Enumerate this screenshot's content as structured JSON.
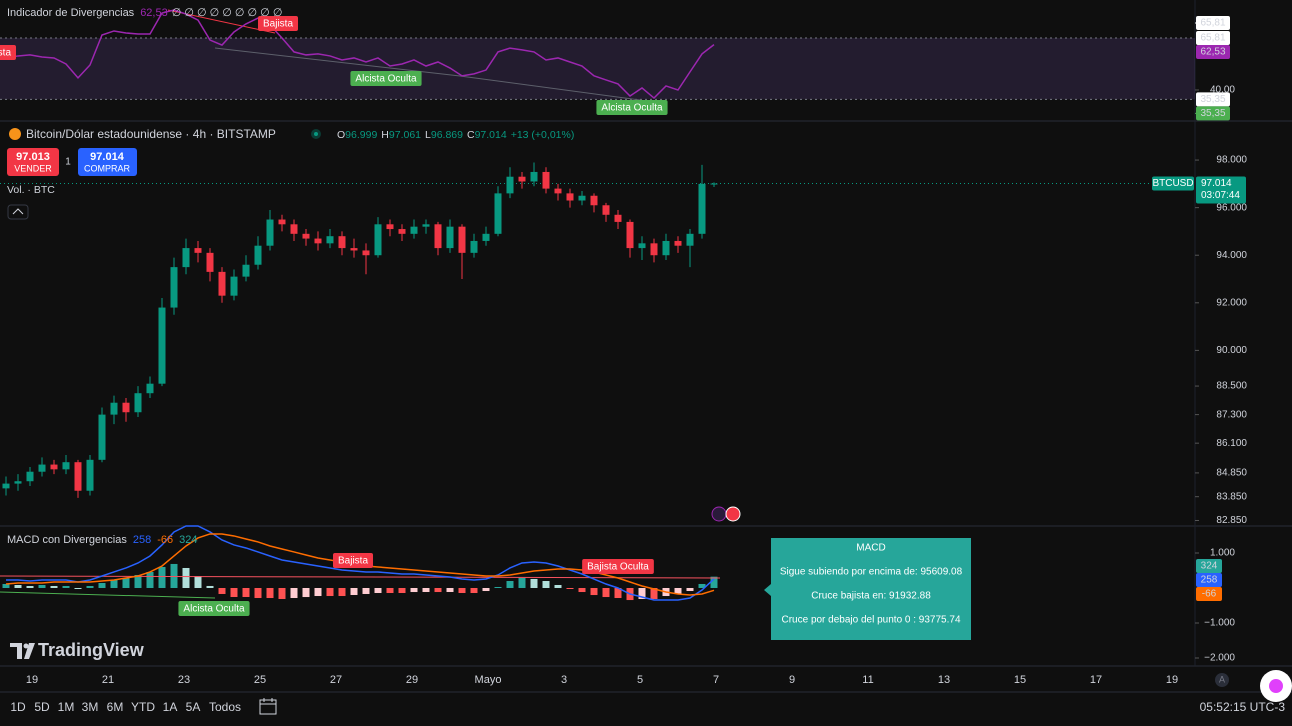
{
  "chart_data": [
    {
      "type": "line",
      "title": "Indicador de Divergencias",
      "legend_extra": "∅ ∅ ∅ ∅ ∅ ∅ ∅ ∅ ∅",
      "last_value_label": "62,53",
      "color": "#9c27b0",
      "values": [
        55.9,
        56.9,
        57.4,
        56.4,
        55.9,
        52.9,
        46.0,
        52.4,
        67.3,
        69.3,
        68.3,
        67.8,
        67.8,
        78.2,
        79.7,
        77.7,
        74.7,
        64.8,
        62.3,
        68.8,
        72.8,
        75.7,
        72.3,
        65.8,
        58.9,
        57.4,
        57.9,
        56.9,
        54.9,
        55.9,
        53.9,
        55.9,
        51.9,
        52.9,
        54.9,
        51.9,
        53.9,
        50.9,
        47.0,
        48.0,
        49.9,
        58.9,
        60.8,
        59.9,
        58.9,
        54.9,
        55.9,
        53.9,
        51.9,
        47.0,
        45.0,
        43.0,
        37.0,
        41.0,
        36.0,
        42.0,
        40.0,
        49.0,
        57.9,
        62.53
      ],
      "ylim": [
        25.1,
        84.67
      ],
      "yticks": [
        {
          "value": 40,
          "label": "40,00"
        }
      ],
      "levels": [
        {
          "value": 65.81,
          "label": "65,81"
        },
        {
          "value": 35.35,
          "label": "35,35"
        }
      ],
      "level_tags": [
        {
          "value": 65.81,
          "label": "65,81",
          "color": "#ffffff"
        },
        {
          "value": 35.35,
          "label": "35,35",
          "color": "#4caf50"
        }
      ],
      "annotations": [
        {
          "text": "Bajista",
          "color": "#f23645"
        },
        {
          "text": "Bajista",
          "color": "#f23645"
        },
        {
          "text": "Alcista Oculta",
          "color": "#4caf50"
        },
        {
          "text": "Alcista Oculta",
          "color": "#4caf50"
        }
      ]
    },
    {
      "type": "candlestick",
      "title": "Bitcoin/Dólar estadounidense · 4h · BITSTAMP",
      "volume_label": "Vol. · BTC",
      "up_color": "#089981",
      "down_color": "#f23645",
      "ohlc_keys": [
        "O",
        "H",
        "L",
        "C"
      ],
      "last_ohlc_labels": [
        "96.999",
        "97.061",
        "96.869",
        "97.014"
      ],
      "change_label": "+13 (+0,01%)",
      "last_price_label": "97.014",
      "countdown": "03:07:44",
      "symbol_tag": "BTCUSD",
      "ohlc": [
        [
          84200,
          84700,
          83900,
          84400
        ],
        [
          84400,
          84800,
          84100,
          84500
        ],
        [
          84500,
          85100,
          84300,
          84900
        ],
        [
          84900,
          85500,
          84700,
          85200
        ],
        [
          85200,
          85400,
          84800,
          85000
        ],
        [
          85000,
          85600,
          84800,
          85300
        ],
        [
          85300,
          85400,
          83800,
          84100
        ],
        [
          84100,
          85600,
          83900,
          85400
        ],
        [
          85400,
          87600,
          85300,
          87300
        ],
        [
          87300,
          88100,
          86900,
          87800
        ],
        [
          87800,
          88000,
          87000,
          87400
        ],
        [
          87400,
          88500,
          87200,
          88200
        ],
        [
          88200,
          88900,
          88000,
          88600
        ],
        [
          88600,
          92200,
          88500,
          91800
        ],
        [
          91800,
          93900,
          91500,
          93500
        ],
        [
          93500,
          94700,
          93200,
          94300
        ],
        [
          94300,
          94600,
          93700,
          94100
        ],
        [
          94100,
          94300,
          92900,
          93300
        ],
        [
          93300,
          93500,
          92000,
          92300
        ],
        [
          92300,
          93400,
          92100,
          93100
        ],
        [
          93100,
          94000,
          92900,
          93600
        ],
        [
          93600,
          94800,
          93400,
          94400
        ],
        [
          94400,
          95900,
          94200,
          95500
        ],
        [
          95500,
          95700,
          95000,
          95300
        ],
        [
          95300,
          95500,
          94600,
          94900
        ],
        [
          94900,
          95100,
          94400,
          94700
        ],
        [
          94700,
          95000,
          94200,
          94500
        ],
        [
          94500,
          95100,
          94300,
          94800
        ],
        [
          94800,
          95000,
          94000,
          94300
        ],
        [
          94300,
          94700,
          93900,
          94200
        ],
        [
          94200,
          94500,
          93200,
          94000
        ],
        [
          94000,
          95600,
          93900,
          95300
        ],
        [
          95300,
          95500,
          94800,
          95100
        ],
        [
          95100,
          95300,
          94600,
          94900
        ],
        [
          94900,
          95500,
          94700,
          95200
        ],
        [
          95200,
          95500,
          94900,
          95300
        ],
        [
          95300,
          95400,
          94000,
          94300
        ],
        [
          94300,
          95500,
          94100,
          95200
        ],
        [
          95200,
          95300,
          93000,
          94100
        ],
        [
          94100,
          94900,
          93900,
          94600
        ],
        [
          94600,
          95200,
          94400,
          94900
        ],
        [
          94900,
          96900,
          94800,
          96600
        ],
        [
          96600,
          97700,
          96400,
          97300
        ],
        [
          97300,
          97500,
          96800,
          97100
        ],
        [
          97100,
          97900,
          96900,
          97500
        ],
        [
          97500,
          97700,
          96600,
          96800
        ],
        [
          96800,
          97000,
          96300,
          96600
        ],
        [
          96600,
          96800,
          96000,
          96300
        ],
        [
          96300,
          96700,
          96100,
          96500
        ],
        [
          96500,
          96600,
          95800,
          96100
        ],
        [
          96100,
          96200,
          95400,
          95700
        ],
        [
          95700,
          95900,
          95100,
          95400
        ],
        [
          95400,
          95500,
          93900,
          94300
        ],
        [
          94300,
          94800,
          93800,
          94500
        ],
        [
          94500,
          94700,
          93700,
          94000
        ],
        [
          94000,
          94900,
          93800,
          94600
        ],
        [
          94600,
          94800,
          94100,
          94400
        ],
        [
          94400,
          95100,
          93500,
          94900
        ],
        [
          94900,
          97800,
          94700,
          96999
        ],
        [
          96999,
          97061,
          96869,
          97014
        ]
      ],
      "ylim": [
        82660,
        99600
      ],
      "yticks": [
        {
          "value": 98000,
          "label": "98.000"
        },
        {
          "value": 96000,
          "label": "96.000"
        },
        {
          "value": 94000,
          "label": "94.000"
        },
        {
          "value": 92000,
          "label": "92.000"
        },
        {
          "value": 90000,
          "label": "90.000"
        },
        {
          "value": 88500,
          "label": "88.500"
        },
        {
          "value": 87300,
          "label": "87.300"
        },
        {
          "value": 86100,
          "label": "86.100"
        },
        {
          "value": 84850,
          "label": "84.850"
        },
        {
          "value": 83850,
          "label": "83.850"
        },
        {
          "value": 82850,
          "label": "82.850"
        }
      ]
    },
    {
      "type": "macd",
      "title": "MACD con Divergencias",
      "ylim": [
        -2200,
        1743
      ],
      "yticks": [
        {
          "value": 1000,
          "label": "1.000"
        },
        {
          "value": -1000,
          "label": "−1.000"
        },
        {
          "value": -2000,
          "label": "−2.000"
        }
      ],
      "series": [
        {
          "color": "#2962ff",
          "values": [
            229,
            229,
            200,
            229,
            229,
            229,
            172,
            229,
            343,
            458,
            572,
            715,
            915,
            1230,
            1602,
            1773,
            1773,
            1602,
            1373,
            1230,
            1144,
            1030,
            915,
            801,
            744,
            686,
            629,
            572,
            515,
            486,
            458,
            458,
            429,
            400,
            400,
            372,
            343,
            315,
            257,
            229,
            257,
            372,
            572,
            715,
            744,
            715,
            629,
            515,
            400,
            257,
            114,
            0,
            -172,
            -257,
            -343,
            -343,
            -343,
            -286,
            -57,
            258
          ]
        },
        {
          "color": "#ff6d00",
          "values": [
            114,
            143,
            143,
            143,
            172,
            172,
            172,
            172,
            200,
            229,
            286,
            343,
            458,
            629,
            915,
            1201,
            1430,
            1544,
            1544,
            1487,
            1401,
            1316,
            1201,
            1115,
            1030,
            944,
            858,
            801,
            744,
            686,
            629,
            601,
            572,
            543,
            515,
            486,
            458,
            429,
            400,
            372,
            343,
            343,
            372,
            429,
            486,
            515,
            543,
            543,
            515,
            458,
            372,
            286,
            172,
            57,
            -29,
            -114,
            -172,
            -200,
            -172,
            -66
          ]
        },
        {
          "color": "#26a69a",
          "values": [
            115,
            86,
            57,
            86,
            57,
            57,
            0,
            57,
            143,
            229,
            286,
            372,
            457,
            601,
            687,
            572,
            343,
            58,
            -171,
            -257,
            -257,
            -286,
            -286,
            -314,
            -286,
            -258,
            -229,
            -229,
            -229,
            -200,
            -171,
            -143,
            -143,
            -143,
            -115,
            -114,
            -115,
            -114,
            -143,
            -143,
            -86,
            29,
            200,
            286,
            258,
            200,
            86,
            -28,
            -115,
            -201,
            -258,
            -286,
            -344,
            -314,
            -314,
            -229,
            -171,
            -86,
            115,
            324
          ]
        }
      ],
      "annotations": [
        {
          "text": "Bajista",
          "color": "#f23645"
        },
        {
          "text": "Bajista Oculta",
          "color": "#f23645"
        },
        {
          "text": "Alcista Oculta",
          "color": "#4caf50"
        }
      ]
    }
  ],
  "trade_panel": {
    "sell_price": "97.013",
    "sell_label": "VENDER",
    "quantity": "1",
    "buy_price": "97.014",
    "buy_label": "COMPRAR"
  },
  "tooltip": {
    "title": "MACD",
    "lines": [
      "Sigue subiendo por encima de: 95609.08",
      "Cruce bajista en: 91932.88",
      "Cruce por debajo del punto 0 : 93775.74"
    ]
  },
  "time_axis": {
    "labels": [
      "19",
      "21",
      "23",
      "25",
      "27",
      "29",
      "Mayo",
      "3",
      "5",
      "7",
      "9",
      "11",
      "13",
      "15",
      "17",
      "19"
    ],
    "corner": "A"
  },
  "logo": "TradingView",
  "toolbar": {
    "ranges": [
      "1D",
      "5D",
      "1M",
      "3M",
      "6M",
      "YTD",
      "1A",
      "5A",
      "Todos"
    ],
    "clock": "05:52:15 UTC-3"
  }
}
